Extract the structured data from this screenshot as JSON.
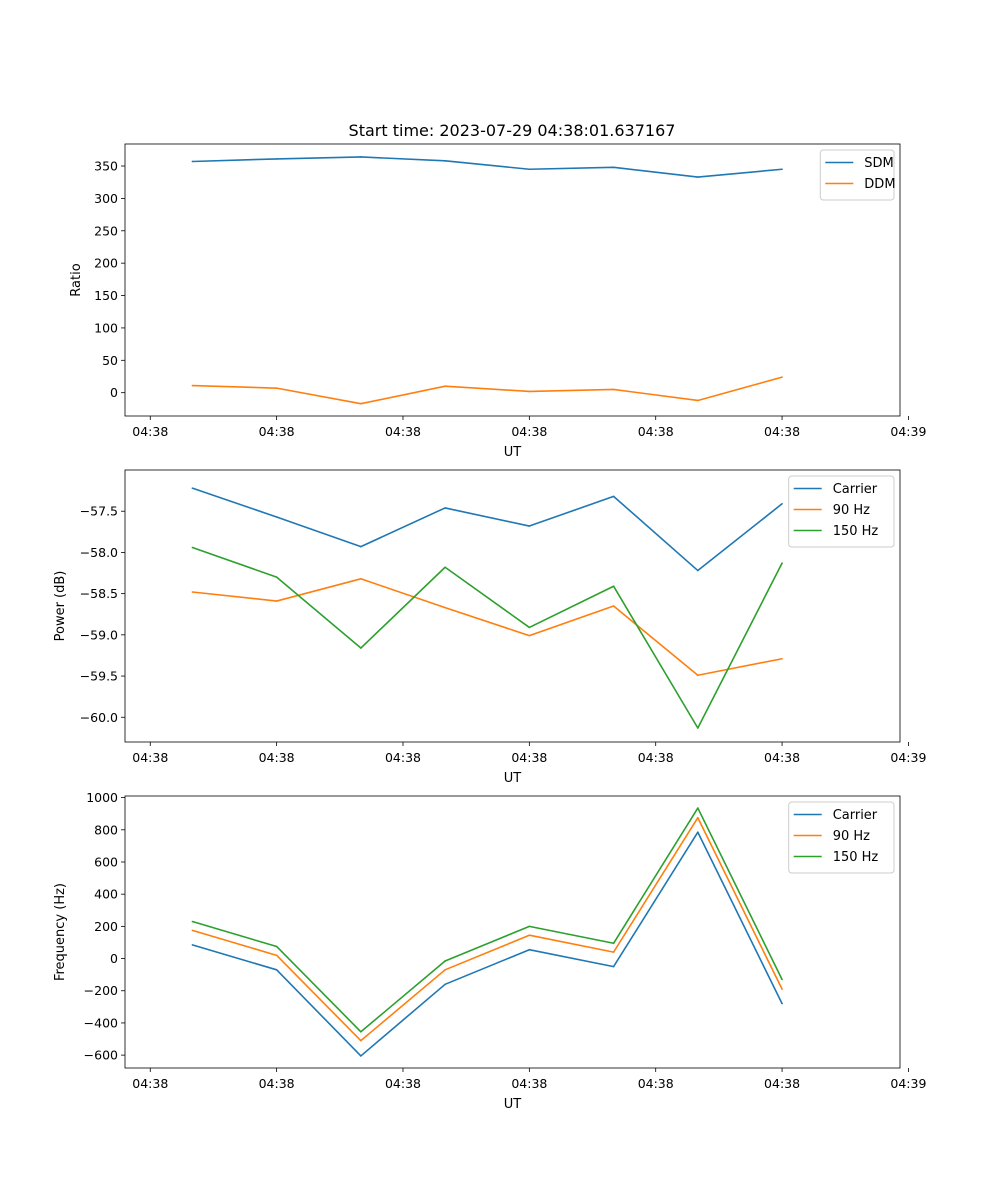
{
  "figure_title": "Start time: 2023-07-29 04:38:01.637167",
  "colors": {
    "blue": "#1f77b4",
    "orange": "#ff7f0e",
    "green": "#2ca02c"
  },
  "chart_data": [
    {
      "type": "line",
      "title": "Start time: 2023-07-29 04:38:01.637167",
      "xlabel": "UT",
      "ylabel": "Ratio",
      "x": [
        1,
        2,
        3,
        4,
        5,
        6,
        7,
        8
      ],
      "xlim": [
        0.2,
        9.4
      ],
      "xticks": [
        0.5,
        2,
        3.5,
        5,
        6.5,
        8,
        9.5
      ],
      "xtick_labels": [
        "04:38",
        "04:38",
        "04:38",
        "04:38",
        "04:38",
        "04:38",
        "04:39"
      ],
      "ylim": [
        -36,
        384
      ],
      "yticks": [
        0,
        50,
        100,
        150,
        200,
        250,
        300,
        350
      ],
      "ytick_labels": [
        "0",
        "50",
        "100",
        "150",
        "200",
        "250",
        "300",
        "350"
      ],
      "legend_position": "top-right",
      "grid": false,
      "series": [
        {
          "name": "SDM",
          "color": "#1f77b4",
          "values": [
            357,
            361,
            364,
            358,
            345,
            348,
            333,
            345
          ]
        },
        {
          "name": "DDM",
          "color": "#ff7f0e",
          "values": [
            11,
            7,
            -17,
            10,
            2,
            5,
            -12,
            24
          ]
        }
      ]
    },
    {
      "type": "line",
      "title": "",
      "xlabel": "UT",
      "ylabel": "Power (dB)",
      "x": [
        1,
        2,
        3,
        4,
        5,
        6,
        7,
        8
      ],
      "xlim": [
        0.2,
        9.4
      ],
      "xticks": [
        0.5,
        2,
        3.5,
        5,
        6.5,
        8,
        9.5
      ],
      "xtick_labels": [
        "04:38",
        "04:38",
        "04:38",
        "04:38",
        "04:38",
        "04:38",
        "04:39"
      ],
      "ylim": [
        -60.3,
        -57.0
      ],
      "yticks": [
        -57.5,
        -58.0,
        -58.5,
        -59.0,
        -59.5,
        -60.0
      ],
      "ytick_labels": [
        "−57.5",
        "−58.0",
        "−58.5",
        "−59.0",
        "−59.5",
        "−60.0"
      ],
      "legend_position": "top-right",
      "grid": false,
      "series": [
        {
          "name": "Carrier",
          "color": "#1f77b4",
          "values": [
            -57.22,
            -57.57,
            -57.93,
            -57.46,
            -57.68,
            -57.32,
            -58.22,
            -57.41
          ]
        },
        {
          "name": "90 Hz",
          "color": "#ff7f0e",
          "values": [
            -58.48,
            -58.59,
            -58.32,
            -58.67,
            -59.01,
            -58.65,
            -59.49,
            -59.29
          ]
        },
        {
          "name": "150 Hz",
          "color": "#2ca02c",
          "values": [
            -57.94,
            -58.3,
            -59.16,
            -58.18,
            -58.91,
            -58.41,
            -60.13,
            -58.13
          ]
        }
      ]
    },
    {
      "type": "line",
      "title": "",
      "xlabel": "UT",
      "ylabel": "Frequency (Hz)",
      "x": [
        1,
        2,
        3,
        4,
        5,
        6,
        7,
        8
      ],
      "xlim": [
        0.2,
        9.4
      ],
      "xticks": [
        0.5,
        2,
        3.5,
        5,
        6.5,
        8,
        9.5
      ],
      "xtick_labels": [
        "04:38",
        "04:38",
        "04:38",
        "04:38",
        "04:38",
        "04:38",
        "04:39"
      ],
      "ylim": [
        -680,
        1010
      ],
      "yticks": [
        -600,
        -400,
        -200,
        0,
        200,
        400,
        600,
        800,
        1000
      ],
      "ytick_labels": [
        "−600",
        "−400",
        "−200",
        "0",
        "200",
        "400",
        "600",
        "800",
        "1000"
      ],
      "legend_position": "top-right",
      "grid": false,
      "series": [
        {
          "name": "Carrier",
          "color": "#1f77b4",
          "values": [
            85,
            -70,
            -605,
            -160,
            55,
            -50,
            785,
            -280
          ]
        },
        {
          "name": "90 Hz",
          "color": "#ff7f0e",
          "values": [
            175,
            20,
            -510,
            -70,
            145,
            40,
            875,
            -190
          ]
        },
        {
          "name": "150 Hz",
          "color": "#2ca02c",
          "values": [
            230,
            75,
            -455,
            -15,
            200,
            95,
            935,
            -130
          ]
        }
      ]
    }
  ]
}
